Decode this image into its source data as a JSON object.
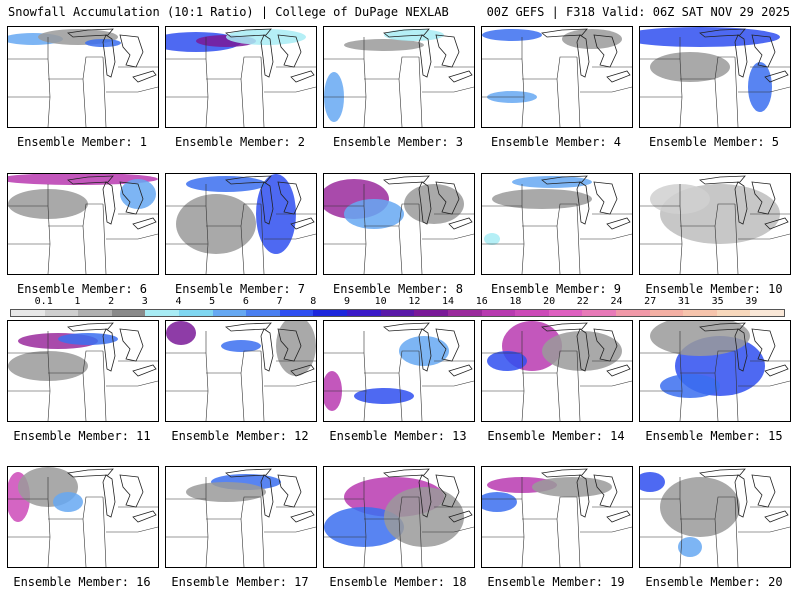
{
  "header": {
    "title_left": "Snowfall Accumulation (10:1 Ratio) | College of DuPage NEXLAB",
    "title_right": "00Z GEFS | F318 Valid: 06Z SAT NOV 29 2025"
  },
  "colorbar": {
    "labels": [
      "0.1",
      "1",
      "2",
      "3",
      "4",
      "5",
      "6",
      "7",
      "8",
      "9",
      "10",
      "12",
      "14",
      "16",
      "18",
      "20",
      "22",
      "24",
      "27",
      "31",
      "35",
      "39"
    ],
    "colors": [
      "#e8e8e8",
      "#cfcfcf",
      "#b0b0b0",
      "#8a8a8a",
      "#a8ecf4",
      "#7fd6f0",
      "#66a8f2",
      "#4a7ff0",
      "#2f4ff0",
      "#1d27dc",
      "#3b1ac8",
      "#5a1aa8",
      "#7a1a98",
      "#9a2a9c",
      "#b83ab0",
      "#cc4ab8",
      "#de60c0",
      "#e87ab8",
      "#f098a8",
      "#f4b0a4",
      "#f6c4ac",
      "#f8d8bc",
      "#fae8d8"
    ]
  },
  "panels": [
    {
      "caption": "Ensemble Member: 1"
    },
    {
      "caption": "Ensemble Member: 2"
    },
    {
      "caption": "Ensemble Member: 3"
    },
    {
      "caption": "Ensemble Member: 4"
    },
    {
      "caption": "Ensemble Member: 5"
    },
    {
      "caption": "Ensemble Member: 6"
    },
    {
      "caption": "Ensemble Member: 7"
    },
    {
      "caption": "Ensemble Member: 8"
    },
    {
      "caption": "Ensemble Member: 9"
    },
    {
      "caption": "Ensemble Member: 10"
    },
    {
      "caption": "Ensemble Member: 11"
    },
    {
      "caption": "Ensemble Member: 12"
    },
    {
      "caption": "Ensemble Member: 13"
    },
    {
      "caption": "Ensemble Member: 14"
    },
    {
      "caption": "Ensemble Member: 15"
    },
    {
      "caption": "Ensemble Member: 16"
    },
    {
      "caption": "Ensemble Member: 17"
    },
    {
      "caption": "Ensemble Member: 18"
    },
    {
      "caption": "Ensemble Member: 19"
    },
    {
      "caption": "Ensemble Member: 20"
    }
  ]
}
